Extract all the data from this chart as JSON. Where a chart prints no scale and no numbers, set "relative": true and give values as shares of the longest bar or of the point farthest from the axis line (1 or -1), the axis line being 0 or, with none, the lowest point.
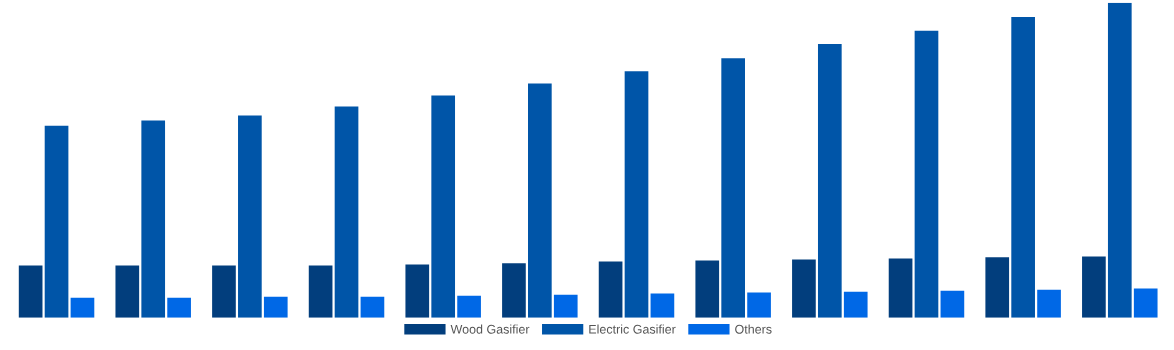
{
  "chart_data": {
    "type": "bar",
    "relative": true,
    "categories": [
      null,
      null,
      null,
      null,
      null,
      null,
      null,
      null,
      null,
      null,
      null,
      null
    ],
    "series": [
      {
        "name": "Wood Gasifier",
        "color": "#023e7d",
        "values": [
          0.166,
          0.166,
          0.166,
          0.166,
          0.169,
          0.173,
          0.179,
          0.182,
          0.185,
          0.188,
          0.192,
          0.195
        ]
      },
      {
        "name": "Electric Gasifier",
        "color": "#0055a8",
        "values": [
          0.61,
          0.626,
          0.642,
          0.671,
          0.706,
          0.744,
          0.783,
          0.824,
          0.869,
          0.911,
          0.955,
          1
        ]
      },
      {
        "name": "Others",
        "color": "#0068e6",
        "values": [
          0.064,
          0.064,
          0.067,
          0.067,
          0.07,
          0.073,
          0.077,
          0.08,
          0.083,
          0.086,
          0.089,
          0.093
        ]
      }
    ],
    "legend": "bottom",
    "grid": false
  }
}
